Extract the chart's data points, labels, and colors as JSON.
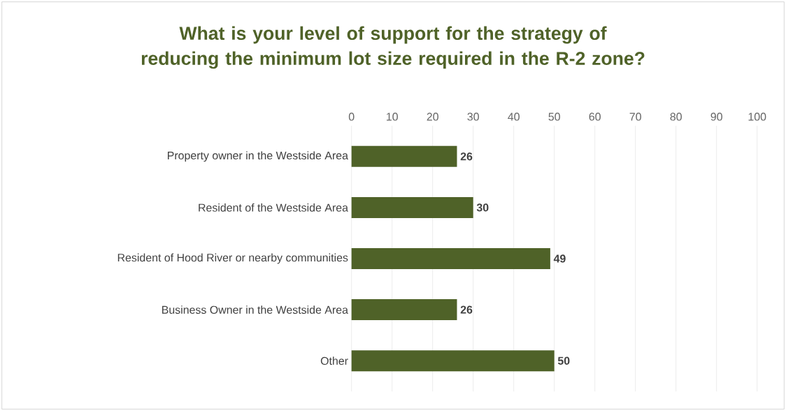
{
  "chart_data": {
    "type": "bar",
    "orientation": "horizontal",
    "title": "What is your level of support for the strategy of reducing the minimum lot size required in the R-2 zone?",
    "categories": [
      "Property owner in the Westside Area",
      "Resident of the Westside Area",
      "Resident of Hood River or nearby communities",
      "Business Owner in the Westside Area",
      "Other"
    ],
    "values": [
      26,
      30,
      49,
      26,
      50
    ],
    "color": "#4f6228",
    "xlim": [
      0,
      100
    ],
    "xticks": [
      0,
      10,
      20,
      30,
      40,
      50,
      60,
      70,
      80,
      90,
      100
    ],
    "grid": "x",
    "data_labels": true
  }
}
